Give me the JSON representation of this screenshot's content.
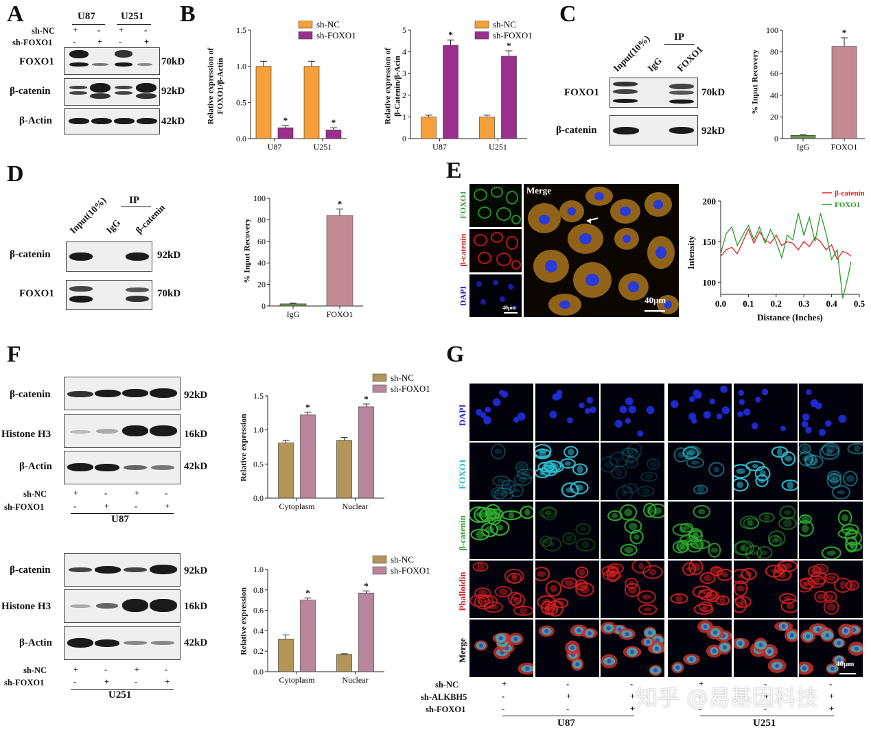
{
  "panel_letters": [
    "A",
    "B",
    "C",
    "D",
    "E",
    "F",
    "G"
  ],
  "panelA": {
    "groups": [
      "U87",
      "U251"
    ],
    "cond_labels": [
      "sh-NC",
      "sh-FOXO1"
    ],
    "cond_signs": [
      [
        "+",
        "-",
        "+",
        "-"
      ],
      [
        "-",
        "+",
        "-",
        "+"
      ]
    ],
    "rows": [
      {
        "name": "FOXO1",
        "kd": "70kD"
      },
      {
        "name": "β-catenin",
        "kd": "92kD"
      },
      {
        "name": "β-Actin",
        "kd": "42kD"
      }
    ]
  },
  "panelB": {
    "legend": [
      "sh-NC",
      "sh-FOXO1"
    ],
    "colors": {
      "sh_nc": "#F5A03A",
      "sh_foxo1": "#9B2F8E"
    },
    "chart1_ylabel_line1": "Relative expression of",
    "chart1_ylabel_line2": "FOXO1/β-Actin",
    "chart2_ylabel_line1": "Relative expression of",
    "chart2_ylabel_line2": "β-Catenin/β-Acin",
    "star": "*"
  },
  "panelC": {
    "lane_labels": [
      "Input(10%)",
      "IgG",
      "FOXO1"
    ],
    "ip_label": "IP",
    "rows": [
      {
        "name": "FOXO1",
        "kd": "70kD"
      },
      {
        "name": "β-catenin",
        "kd": "92kD"
      }
    ],
    "ylabel": "% Input Recovery",
    "colors": {
      "igg": "#6B8E4E",
      "foxo1": "#C48A93"
    }
  },
  "panelD": {
    "lane_labels": [
      "Input(10%)",
      "IgG",
      "β-catenin"
    ],
    "ip_label": "IP",
    "rows": [
      {
        "name": "β-catenin",
        "kd": "92kD"
      },
      {
        "name": "FOXO1",
        "kd": "70kD"
      }
    ],
    "ylabel": "% Input Recovery",
    "colors": {
      "igg": "#6B8E4E",
      "foxo1": "#C48A93"
    }
  },
  "panelE": {
    "channels": [
      "FOXO1",
      "β-catenin",
      "DAPI"
    ],
    "channel_colors": [
      "#2FA02F",
      "#D21E1E",
      "#1A1AC8"
    ],
    "merge_label": "Merge",
    "scale_small": "40μm",
    "scale_big": "40μm",
    "legend": [
      "β-catenin",
      "FOXO1"
    ],
    "legend_colors": [
      "#E02020",
      "#2A9A2A"
    ],
    "ylabel": "Intensity",
    "xlabel": "Distance (Inches)"
  },
  "panelF": {
    "blot_rows": [
      {
        "name": "β-catenin",
        "kd": "92kD"
      },
      {
        "name": "Histone H3",
        "kd": "16kD"
      },
      {
        "name": "β-Actin",
        "kd": "42kD"
      }
    ],
    "cond_labels": [
      "sh-NC",
      "sh-FOXO1"
    ],
    "cond_signs": [
      [
        "+",
        "-",
        "+",
        "-"
      ],
      [
        "-",
        "+",
        "-",
        "+"
      ]
    ],
    "cells": [
      "U87",
      "U251"
    ],
    "legend": [
      "sh-NC",
      "sh-FOXO1"
    ],
    "colors": {
      "sh_nc": "#B3955A",
      "sh_foxo1": "#B9869C"
    },
    "ylabel": "Relative expression",
    "star": "*"
  },
  "panelG": {
    "rows": [
      "DAPI",
      "FOXO1",
      "β-catenin",
      "Phalloidin",
      "Merge"
    ],
    "row_colors": [
      "#2020D0",
      "#27B8C8",
      "#2FA02F",
      "#D21E1E",
      "#111111"
    ],
    "cond_labels": [
      "sh-NC",
      "sh-ALKBH5",
      "sh-FOXO1"
    ],
    "cond_signs": [
      [
        "+",
        "-",
        "-",
        "+",
        "-",
        "-"
      ],
      [
        "-",
        "+",
        "+",
        "-",
        "+",
        "+"
      ],
      [
        "-",
        "-",
        "+",
        "-",
        "-",
        "+"
      ]
    ],
    "cells": [
      "U87",
      "U251"
    ],
    "scale": "40μm"
  },
  "watermark": "知乎 @易基因科技",
  "chart_data": [
    {
      "type": "bar",
      "title": "",
      "xlabel": "",
      "ylabel": "Relative expression of FOXO1/β-Actin",
      "categories": [
        "U87",
        "U251"
      ],
      "ylim": [
        0,
        1.5
      ],
      "yticks": [
        0,
        0.5,
        1.0,
        1.5
      ],
      "series": [
        {
          "name": "sh-NC",
          "values": [
            1.0,
            1.0
          ]
        },
        {
          "name": "sh-FOXO1",
          "values": [
            0.15,
            0.12
          ]
        }
      ]
    },
    {
      "type": "bar",
      "title": "",
      "xlabel": "",
      "ylabel": "Relative expression of β-Catenin/β-Acin",
      "categories": [
        "U87",
        "U251"
      ],
      "ylim": [
        0,
        5
      ],
      "yticks": [
        0,
        1,
        2,
        3,
        4,
        5
      ],
      "series": [
        {
          "name": "sh-NC",
          "values": [
            1.0,
            1.0
          ]
        },
        {
          "name": "sh-FOXO1",
          "values": [
            4.3,
            3.8
          ]
        }
      ]
    },
    {
      "type": "bar",
      "title": "",
      "xlabel": "",
      "ylabel": "% Input Recovery",
      "categories": [
        "IgG",
        "FOXO1"
      ],
      "ylim": [
        0,
        100
      ],
      "yticks": [
        0,
        20,
        40,
        60,
        80,
        100
      ],
      "values": [
        3,
        85
      ]
    },
    {
      "type": "bar",
      "title": "",
      "xlabel": "",
      "ylabel": "% Input Recovery",
      "categories": [
        "IgG",
        "FOXO1"
      ],
      "ylim": [
        0,
        100
      ],
      "yticks": [
        0,
        20,
        40,
        60,
        80,
        100
      ],
      "values": [
        2,
        84
      ]
    },
    {
      "type": "line",
      "title": "",
      "xlabel": "Distance (Inches)",
      "ylabel": "Intensity",
      "xlim": [
        0,
        0.5
      ],
      "ylim": [
        85,
        200
      ],
      "xticks": [
        0.0,
        0.1,
        0.2,
        0.3,
        0.4,
        0.5
      ],
      "yticks": [
        100,
        150,
        200
      ],
      "series": [
        {
          "name": "β-catenin",
          "x": [
            0.0,
            0.02,
            0.04,
            0.06,
            0.08,
            0.1,
            0.12,
            0.14,
            0.16,
            0.18,
            0.2,
            0.22,
            0.24,
            0.26,
            0.28,
            0.3,
            0.32,
            0.34,
            0.36,
            0.38,
            0.4,
            0.42,
            0.44,
            0.46,
            0.47
          ],
          "y": [
            132,
            140,
            143,
            135,
            150,
            165,
            148,
            162,
            152,
            148,
            158,
            145,
            150,
            148,
            140,
            150,
            144,
            155,
            150,
            140,
            146,
            128,
            138,
            135,
            132
          ]
        },
        {
          "name": "FOXO1",
          "x": [
            0.0,
            0.02,
            0.04,
            0.06,
            0.08,
            0.1,
            0.12,
            0.14,
            0.16,
            0.18,
            0.2,
            0.22,
            0.24,
            0.26,
            0.28,
            0.3,
            0.32,
            0.34,
            0.36,
            0.38,
            0.4,
            0.42,
            0.44,
            0.46,
            0.47
          ],
          "y": [
            135,
            160,
            168,
            145,
            158,
            170,
            152,
            168,
            148,
            165,
            150,
            130,
            158,
            152,
            185,
            158,
            180,
            150,
            185,
            160,
            128,
            140,
            80,
            108,
            125
          ]
        }
      ]
    },
    {
      "type": "bar",
      "title": "",
      "xlabel": "",
      "ylabel": "Relative expression",
      "categories": [
        "Cytoplasm",
        "Nuclear"
      ],
      "ylim": [
        0,
        1.5
      ],
      "yticks": [
        0.0,
        0.5,
        1.0,
        1.5
      ],
      "series": [
        {
          "name": "sh-NC",
          "values": [
            0.81,
            0.85
          ]
        },
        {
          "name": "sh-FOXO1",
          "values": [
            1.22,
            1.34
          ]
        }
      ]
    },
    {
      "type": "bar",
      "title": "",
      "xlabel": "",
      "ylabel": "Relative expression",
      "categories": [
        "Cytoplasm",
        "Nuclear"
      ],
      "ylim": [
        0,
        1.0
      ],
      "yticks": [
        0.0,
        0.2,
        0.4,
        0.6,
        0.8,
        1.0
      ],
      "series": [
        {
          "name": "sh-NC",
          "values": [
            0.32,
            0.17
          ]
        },
        {
          "name": "sh-FOXO1",
          "values": [
            0.7,
            0.77
          ]
        }
      ]
    }
  ]
}
